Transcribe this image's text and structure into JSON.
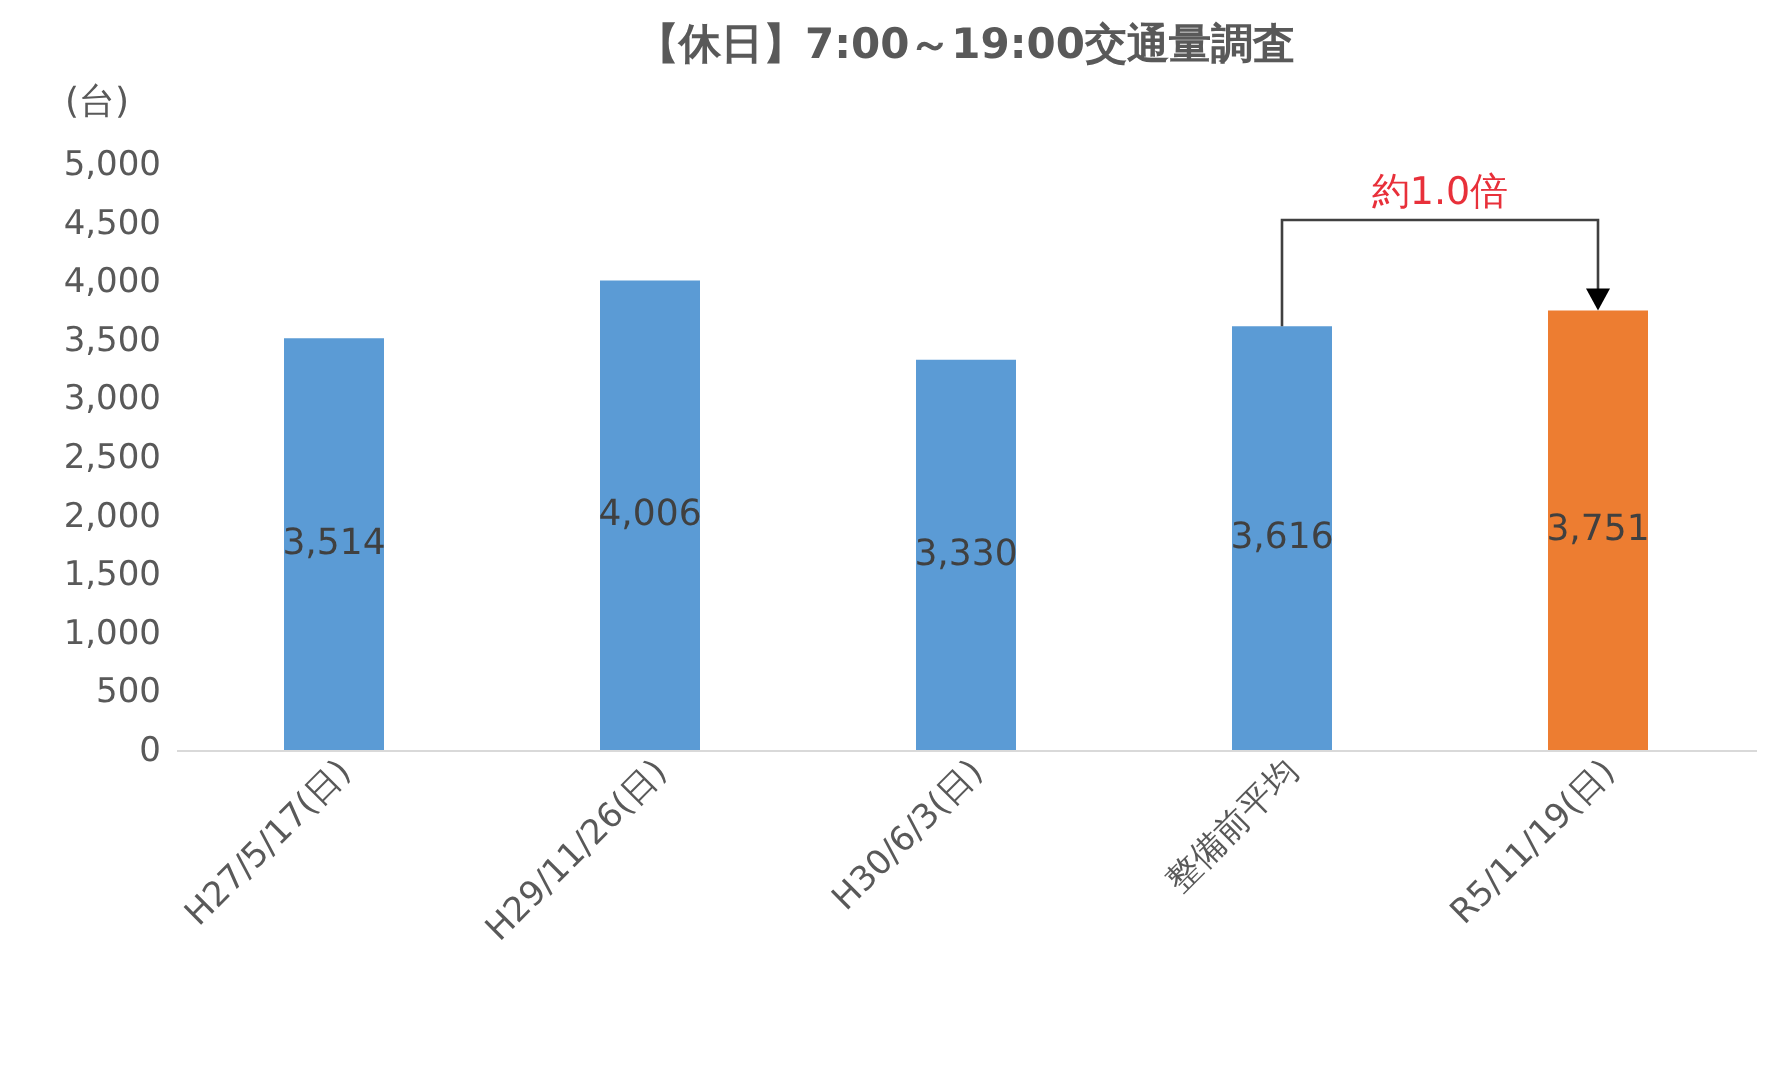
{
  "chart_data": {
    "type": "bar",
    "title": "【休日】7:00～19:00交通量調査",
    "ylabel": "(台)",
    "categories": [
      "H27/5/17(日)",
      "H29/11/26(日)",
      "H30/6/3(日)",
      "整備前平均",
      "R5/11/19(日)"
    ],
    "values": [
      3514,
      4006,
      3330,
      3616,
      3751
    ],
    "value_labels": [
      "3,514",
      "4,006",
      "3,330",
      "3,616",
      "3,751"
    ],
    "colors": [
      "#5b9bd5",
      "#5b9bd5",
      "#5b9bd5",
      "#5b9bd5",
      "#ed7d31"
    ],
    "ylim": [
      0,
      5000
    ],
    "yticks": [
      {
        "value": 0,
        "label": "0"
      },
      {
        "value": 500,
        "label": "500"
      },
      {
        "value": 1000,
        "label": "1,000"
      },
      {
        "value": 1500,
        "label": "1,500"
      },
      {
        "value": 2000,
        "label": "2,000"
      },
      {
        "value": 2500,
        "label": "2,500"
      },
      {
        "value": 3000,
        "label": "3,000"
      },
      {
        "value": 3500,
        "label": "3,500"
      },
      {
        "value": 4000,
        "label": "4,000"
      },
      {
        "value": 4500,
        "label": "4,500"
      },
      {
        "value": 5000,
        "label": "5,000"
      }
    ],
    "grid": false,
    "annotations": [
      "約1.0倍"
    ]
  }
}
